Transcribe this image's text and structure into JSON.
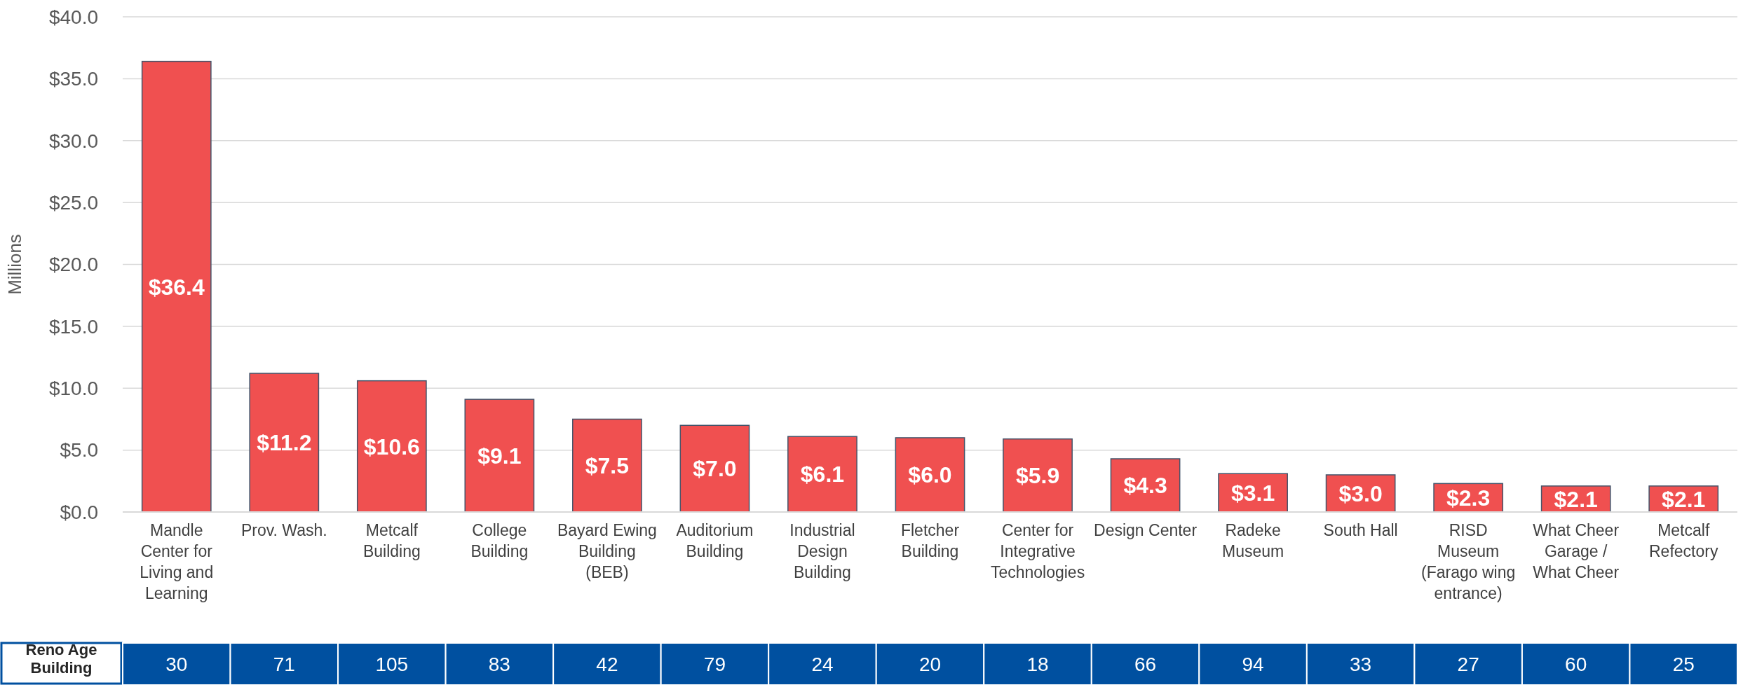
{
  "chart_data": {
    "type": "bar",
    "ylabel": "Millions",
    "categories": [
      "Mandle Center for Living and Learning",
      "Prov. Wash.",
      "Metcalf Building",
      "College Building",
      "Bayard Ewing Building (BEB)",
      "Auditorium Building",
      "Industrial Design Building",
      "Fletcher Building",
      "Center for Integrative Technologies",
      "Design Center",
      "Radeke Museum",
      "South Hall",
      "RISD Museum (Farago wing entrance)",
      "What Cheer Garage / What Cheer",
      "Metcalf Refectory"
    ],
    "values": [
      36.4,
      11.2,
      10.6,
      9.1,
      7.5,
      7.0,
      6.1,
      6.0,
      5.9,
      4.3,
      3.1,
      3.0,
      2.3,
      2.1,
      2.1
    ],
    "value_labels": [
      "$36.4",
      "$11.2",
      "$10.6",
      "$9.1",
      "$7.5",
      "$7.0",
      "$6.1",
      "$6.0",
      "$5.9",
      "$4.3",
      "$3.1",
      "$3.0",
      "$2.3",
      "$2.1",
      "$2.1"
    ],
    "color": "#f05050",
    "ylim": [
      0,
      40
    ],
    "yticks": [
      {
        "value": 0,
        "label": "$0.0"
      },
      {
        "value": 5,
        "label": "$5.0"
      },
      {
        "value": 10,
        "label": "$10.0"
      },
      {
        "value": 15,
        "label": "$15.0"
      },
      {
        "value": 20,
        "label": "$20.0"
      },
      {
        "value": 25,
        "label": "$25.0"
      },
      {
        "value": 30,
        "label": "$30.0"
      },
      {
        "value": 35,
        "label": "$35.0"
      },
      {
        "value": 40,
        "label": "$40.0"
      }
    ],
    "grid": "y",
    "annotations": [
      "Reno Age Building",
      "30",
      "71",
      "105",
      "83",
      "42",
      "79",
      "24",
      "20",
      "18",
      "66",
      "94",
      "33",
      "27",
      "60",
      "25"
    ]
  }
}
